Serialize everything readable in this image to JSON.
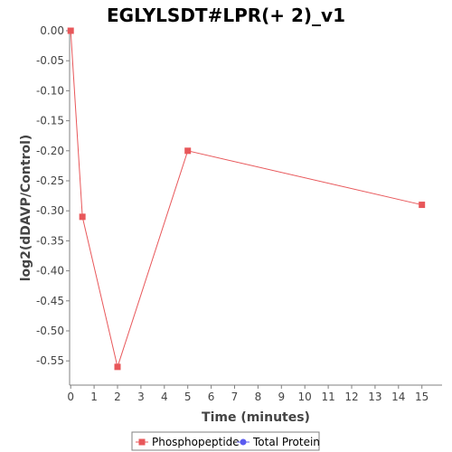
{
  "chart_data": {
    "type": "line",
    "title": "EGLYLSDT#LPR(+ 2)_v1",
    "xlabel": "Time (minutes)",
    "ylabel": "log2(dDAVP/Control)",
    "xlim": [
      0,
      15.5
    ],
    "ylim": [
      -0.58,
      0.0
    ],
    "x_ticks": [
      "0",
      "1",
      "2",
      "3",
      "4",
      "5",
      "6",
      "7",
      "8",
      "9",
      "10",
      "11",
      "12",
      "13",
      "14",
      "15"
    ],
    "y_ticks": [
      "0.00",
      "-0.05",
      "-0.10",
      "-0.15",
      "-0.20",
      "-0.25",
      "-0.30",
      "-0.35",
      "-0.40",
      "-0.45",
      "-0.50",
      "-0.55"
    ],
    "grid": false,
    "legend_position": "bottom",
    "series": [
      {
        "name": "Phosphopeptide",
        "color": "#e8575a",
        "marker": "square",
        "x": [
          0,
          0.5,
          2,
          5,
          15
        ],
        "values": [
          0.0,
          -0.31,
          -0.56,
          -0.2,
          -0.29
        ]
      },
      {
        "name": "Total Protein",
        "color": "#5b5bf0",
        "marker": "circle",
        "x": [],
        "values": []
      }
    ]
  }
}
